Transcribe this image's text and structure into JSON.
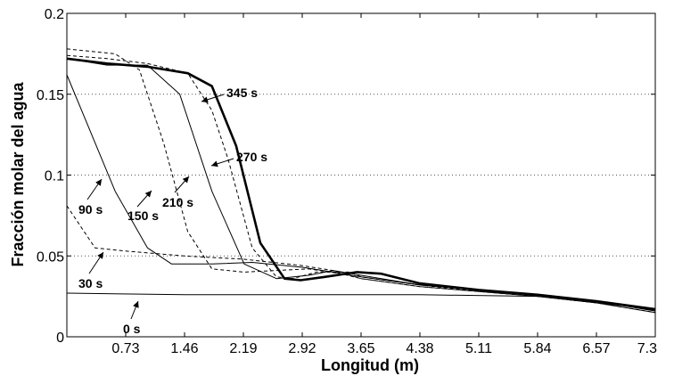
{
  "chart_data": {
    "type": "line",
    "xlabel": "Longitud (m)",
    "ylabel": "Fracción molar del agua",
    "xlim": [
      0,
      7.3
    ],
    "ylim": [
      0,
      0.2
    ],
    "x_ticks": [
      0.73,
      1.46,
      2.19,
      2.92,
      3.65,
      4.38,
      5.11,
      5.84,
      6.57,
      7.3
    ],
    "x_tick_labels": [
      "0.73",
      "1.46",
      "2.19",
      "2.92",
      "3.65",
      "4.38",
      "5.11",
      "5.84",
      "6.57",
      "7.3"
    ],
    "y_ticks": [
      0,
      0.05,
      0.1,
      0.15,
      0.2
    ],
    "y_tick_labels": [
      "0",
      "0.05",
      "0.1",
      "0.15",
      "0.2"
    ],
    "grid": "horizontal dotted at 0.05, 0.1, 0.15",
    "series": [
      {
        "name": "0 s",
        "style": "solid-thin",
        "x": [
          0,
          1.46,
          2.92,
          4.38,
          5.84,
          7.3
        ],
        "y": [
          0.027,
          0.026,
          0.026,
          0.026,
          0.025,
          0.017
        ]
      },
      {
        "name": "30 s",
        "style": "dashed",
        "x": [
          0,
          0.35,
          0.73,
          1.46,
          2.19,
          2.92,
          3.3,
          3.65,
          4.38,
          5.11,
          5.84,
          6.57,
          7.3
        ],
        "y": [
          0.081,
          0.055,
          0.053,
          0.05,
          0.048,
          0.044,
          0.041,
          0.036,
          0.031,
          0.028,
          0.025,
          0.021,
          0.015
        ]
      },
      {
        "name": "90 s",
        "style": "solid-thin",
        "x": [
          0,
          0.6,
          1.0,
          1.3,
          1.8,
          2.3,
          2.92,
          3.3,
          3.65,
          4.38,
          5.11,
          5.84,
          6.57,
          7.3
        ],
        "y": [
          0.162,
          0.09,
          0.055,
          0.045,
          0.045,
          0.046,
          0.043,
          0.04,
          0.037,
          0.032,
          0.029,
          0.026,
          0.022,
          0.016
        ]
      },
      {
        "name": "150 s",
        "style": "dashed",
        "x": [
          0,
          0.6,
          0.9,
          1.2,
          1.5,
          1.8,
          2.2,
          2.6,
          3.0,
          3.4,
          3.65,
          4.38,
          5.11,
          5.84,
          6.57,
          7.3
        ],
        "y": [
          0.178,
          0.175,
          0.165,
          0.12,
          0.065,
          0.042,
          0.04,
          0.041,
          0.042,
          0.039,
          0.036,
          0.031,
          0.028,
          0.025,
          0.021,
          0.015
        ]
      },
      {
        "name": "210 s",
        "style": "solid-thin",
        "x": [
          0,
          0.5,
          1.0,
          1.4,
          1.8,
          2.2,
          2.6,
          3.0,
          3.3,
          3.65,
          4.38,
          5.11,
          5.84,
          6.57,
          7.3
        ],
        "y": [
          0.172,
          0.168,
          0.168,
          0.15,
          0.09,
          0.045,
          0.036,
          0.038,
          0.041,
          0.038,
          0.032,
          0.029,
          0.026,
          0.022,
          0.016
        ]
      },
      {
        "name": "270 s",
        "style": "dashed",
        "x": [
          0,
          0.5,
          1.0,
          1.5,
          1.8,
          2.0,
          2.3,
          2.6,
          2.8,
          3.1,
          3.5,
          3.65,
          4.38,
          5.11,
          5.84,
          6.57,
          7.3
        ],
        "y": [
          0.174,
          0.172,
          0.169,
          0.163,
          0.14,
          0.11,
          0.055,
          0.037,
          0.036,
          0.04,
          0.04,
          0.037,
          0.032,
          0.028,
          0.025,
          0.021,
          0.015
        ]
      },
      {
        "name": "345 s",
        "style": "solid-thick",
        "x": [
          0,
          0.5,
          1.0,
          1.5,
          1.8,
          2.1,
          2.4,
          2.7,
          2.9,
          3.2,
          3.6,
          3.9,
          4.38,
          5.11,
          5.84,
          6.57,
          7.3
        ],
        "y": [
          0.172,
          0.169,
          0.167,
          0.163,
          0.155,
          0.118,
          0.058,
          0.036,
          0.035,
          0.037,
          0.04,
          0.039,
          0.033,
          0.029,
          0.026,
          0.022,
          0.017
        ]
      }
    ]
  }
}
